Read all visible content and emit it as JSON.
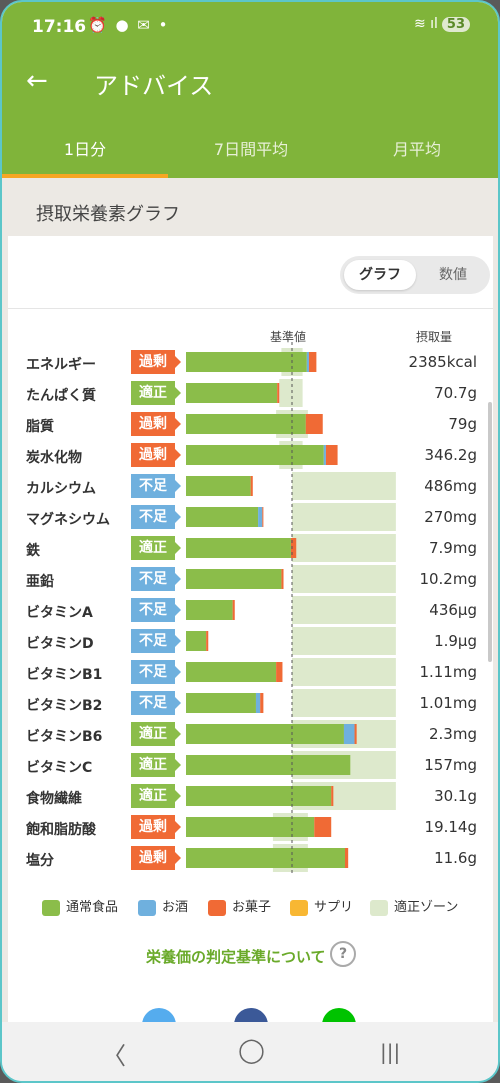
{
  "status": {
    "time": "17:16",
    "icons": "⏰ ● ✉ •",
    "right": "≋ ıl",
    "battery": "53"
  },
  "appbar": {
    "title": "アドバイス"
  },
  "tabs": [
    "1日分",
    "7日間平均",
    "月平均"
  ],
  "section_title": "摂取栄養素グラフ",
  "toggle": {
    "graph": "グラフ",
    "numbers": "数値"
  },
  "headers": {
    "standard": "基準値",
    "intake": "摂取量"
  },
  "colors": {
    "normal": "#8bbd4a",
    "alcohol": "#6fb0de",
    "sweets": "#f06a35",
    "supplement": "#f8b733",
    "zone": "#dde9cc",
    "over": "#f06a35",
    "ok": "#8bbd4a",
    "under": "#6fb0de"
  },
  "chart_data": {
    "type": "bar",
    "note": "horizontal stacked bars, % of standard value; standard line at 100",
    "rows": [
      {
        "name": "エネルギー",
        "status": "過剰",
        "value": "2385kcal",
        "normal": 114,
        "alcohol": 2,
        "sweets": 7,
        "zone": [
          90,
          110
        ]
      },
      {
        "name": "たんぱく質",
        "status": "適正",
        "value": "70.7g",
        "normal": 86,
        "alcohol": 0,
        "sweets": 2,
        "zone": [
          88,
          110
        ]
      },
      {
        "name": "脂質",
        "status": "過剰",
        "value": "79g",
        "normal": 113,
        "alcohol": 0,
        "sweets": 16,
        "zone": [
          85,
          115
        ]
      },
      {
        "name": "炭水化物",
        "status": "過剰",
        "value": "346.2g",
        "normal": 130,
        "alcohol": 2,
        "sweets": 11,
        "zone": [
          88,
          110
        ]
      },
      {
        "name": "カルシウム",
        "status": "不足",
        "value": "486mg",
        "normal": 61,
        "alcohol": 0,
        "sweets": 2,
        "zone": [
          100,
          198
        ]
      },
      {
        "name": "マグネシウム",
        "status": "不足",
        "value": "270mg",
        "normal": 68,
        "alcohol": 4,
        "sweets": 1,
        "zone": [
          100,
          198
        ]
      },
      {
        "name": "鉄",
        "status": "適正",
        "value": "7.9mg",
        "normal": 99,
        "alcohol": 0,
        "sweets": 5,
        "zone": [
          100,
          198
        ]
      },
      {
        "name": "亜鉛",
        "status": "不足",
        "value": "10.2mg",
        "normal": 90,
        "alcohol": 0,
        "sweets": 2,
        "zone": [
          100,
          198
        ]
      },
      {
        "name": "ビタミンA",
        "status": "不足",
        "value": "436μg",
        "normal": 44,
        "alcohol": 0,
        "sweets": 2,
        "zone": [
          100,
          198
        ]
      },
      {
        "name": "ビタミンD",
        "status": "不足",
        "value": "1.9μg",
        "normal": 19,
        "alcohol": 0,
        "sweets": 2,
        "zone": [
          100,
          198
        ]
      },
      {
        "name": "ビタミンB1",
        "status": "不足",
        "value": "1.11mg",
        "normal": 85,
        "alcohol": 0,
        "sweets": 6,
        "zone": [
          100,
          198
        ]
      },
      {
        "name": "ビタミンB2",
        "status": "不足",
        "value": "1.01mg",
        "normal": 66,
        "alcohol": 4,
        "sweets": 3,
        "zone": [
          100,
          198
        ]
      },
      {
        "name": "ビタミンB6",
        "status": "適正",
        "value": "2.3mg",
        "normal": 149,
        "alcohol": 10,
        "sweets": 2,
        "zone": [
          100,
          198
        ]
      },
      {
        "name": "ビタミンC",
        "status": "適正",
        "value": "157mg",
        "normal": 155,
        "alcohol": 0,
        "sweets": 0,
        "zone": [
          100,
          198
        ]
      },
      {
        "name": "食物繊維",
        "status": "適正",
        "value": "30.1g",
        "normal": 137,
        "alcohol": 0,
        "sweets": 2,
        "zone": [
          100,
          198
        ]
      },
      {
        "name": "飽和脂肪酸",
        "status": "過剰",
        "value": "19.14g",
        "normal": 121,
        "alcohol": 0,
        "sweets": 16,
        "zone": [
          82,
          115
        ]
      },
      {
        "name": "塩分",
        "status": "過剰",
        "value": "11.6g",
        "normal": 150,
        "alcohol": 0,
        "sweets": 3,
        "zone": [
          82,
          115
        ]
      }
    ],
    "legend": [
      "通常食品",
      "お酒",
      "お菓子",
      "サプリ",
      "適正ゾーン"
    ]
  },
  "criteria_link": "栄養価の判定基準について",
  "help": "?",
  "nav": {
    "back": "〈",
    "home": "◯",
    "recent": "|||"
  }
}
